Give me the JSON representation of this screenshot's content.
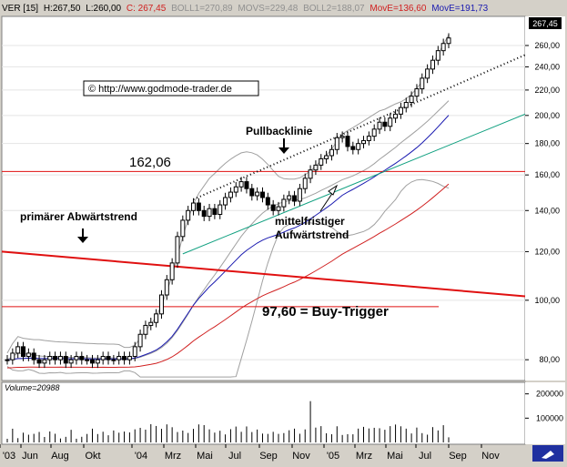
{
  "header": {
    "symbol_part": "VER [15]",
    "high": "H:267,50",
    "low": "L:260,00",
    "close": "C: 267,45",
    "boll1": "BOLL1=270,89",
    "movs": "MOVS=229,48",
    "boll2": "BOLL2=188,07",
    "move1": "MovE=136,60",
    "move2": "MovE=191,73"
  },
  "last_price_tag": "267,45",
  "watermark": "© http://www.godmode-trader.de",
  "annotations": {
    "pullback": "Pullbacklinie",
    "level_high": "162,06",
    "primary_trend": "primärer Abwärtstrend",
    "mid_trend_1": "mittelfristiger",
    "mid_trend_2": "Aufwärtstrend",
    "buy_trigger": "97,60 = Buy-Trigger"
  },
  "volume_label": "Volume=20988",
  "colors": {
    "background": "#ffffff",
    "frame": "#d4d0c8",
    "bollinger": "#a0a0a0",
    "moving_avg_short": "#1a1ab0",
    "moving_avg_long": "#d02020",
    "trend_down": "#e01010",
    "trend_up": "#10a080",
    "buy_trigger_line": "#e01010",
    "candles": "#000000"
  },
  "chart_data": {
    "type": "candlestick",
    "y_scale": "log",
    "ylim": [
      74,
      290
    ],
    "y_ticks": [
      80,
      100,
      120,
      140,
      160,
      180,
      200,
      220,
      240,
      260
    ],
    "y_tick_labels": [
      "80,00",
      "100,00",
      "120,00",
      "140,00",
      "160,00",
      "180,00",
      "200,00",
      "220,00",
      "240,00",
      "260,00"
    ],
    "x_labels": [
      "'03",
      "Jun",
      "Aug",
      "Okt",
      "'04",
      "Mrz",
      "Mai",
      "Jul",
      "Sep",
      "Nov",
      "'05",
      "Mrz",
      "Mai",
      "Jul",
      "Sep",
      "Nov"
    ],
    "horizontal_levels": [
      162.06,
      97.6
    ],
    "weekly_closes": [
      80,
      82,
      84,
      81,
      82,
      80,
      79,
      80,
      81,
      80,
      81,
      79,
      80,
      81,
      80,
      80,
      79,
      80,
      81,
      80,
      80,
      81,
      80,
      81,
      84,
      88,
      91,
      92,
      95,
      102,
      108,
      115,
      127,
      135,
      140,
      144,
      140,
      137,
      141,
      138,
      143,
      147,
      150,
      153,
      156,
      152,
      148,
      150,
      147,
      143,
      140,
      142,
      146,
      148,
      145,
      152,
      158,
      163,
      166,
      170,
      172,
      176,
      184,
      185,
      178,
      176,
      180,
      182,
      185,
      190,
      195,
      192,
      198,
      201,
      206,
      210,
      215,
      221,
      230,
      238,
      246,
      255,
      262,
      267.45
    ],
    "volume_axis": {
      "ticks": [
        100000,
        200000
      ],
      "tick_labels": [
        "100000",
        "200000"
      ],
      "ylim": [
        0,
        240000
      ]
    },
    "volume_last": 20988
  }
}
